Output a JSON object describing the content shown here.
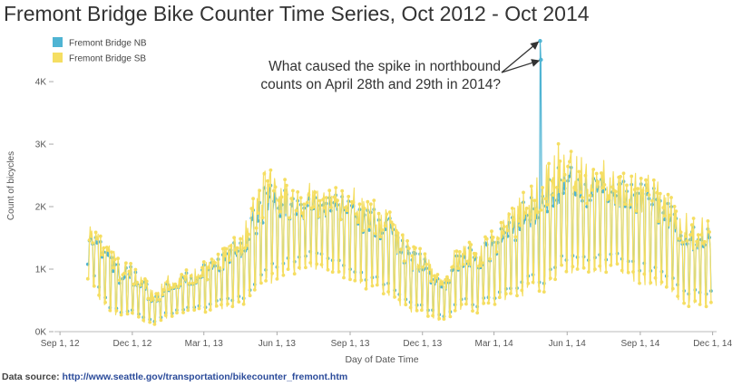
{
  "chart_data": {
    "type": "line",
    "title": "Fremont Bridge Bike Counter Time Series, Oct 2012 - Oct 2014",
    "xlabel": "Day of Date Time",
    "ylabel": "Count of bicycles",
    "x_range": [
      "2012-08-25",
      "2014-12-06"
    ],
    "ylim": [
      0,
      4900
    ],
    "x_ticks": [
      {
        "date": "2012-09-01",
        "label": "Sep 1, 12"
      },
      {
        "date": "2012-12-01",
        "label": "Dec 1, 12"
      },
      {
        "date": "2013-03-01",
        "label": "Mar 1, 13"
      },
      {
        "date": "2013-06-01",
        "label": "Jun 1, 13"
      },
      {
        "date": "2013-09-01",
        "label": "Sep 1, 13"
      },
      {
        "date": "2013-12-01",
        "label": "Dec 1, 13"
      },
      {
        "date": "2014-03-01",
        "label": "Mar 1, 14"
      },
      {
        "date": "2014-06-01",
        "label": "Jun 1, 14"
      },
      {
        "date": "2014-09-01",
        "label": "Sep 1, 14"
      },
      {
        "date": "2014-12-01",
        "label": "Dec 1, 14"
      }
    ],
    "y_ticks": [
      {
        "value": 0,
        "label": "0K"
      },
      {
        "value": 1000,
        "label": "1K"
      },
      {
        "value": 2000,
        "label": "2K"
      },
      {
        "value": 3000,
        "label": "3K"
      },
      {
        "value": 4000,
        "label": "4K"
      }
    ],
    "grid": false,
    "legend_position": "top-left",
    "series": [
      {
        "name": "Fremont Bridge NB",
        "color": "#4fb4d3",
        "weekly": [
          {
            "date": "2012-10-06",
            "high": 1650,
            "low": 1050
          },
          {
            "date": "2012-10-20",
            "high": 1500,
            "low": 650
          },
          {
            "date": "2012-11-03",
            "high": 1300,
            "low": 350
          },
          {
            "date": "2012-11-17",
            "high": 1000,
            "low": 250
          },
          {
            "date": "2012-12-01",
            "high": 1050,
            "low": 300
          },
          {
            "date": "2012-12-15",
            "high": 850,
            "low": 200
          },
          {
            "date": "2012-12-29",
            "high": 550,
            "low": 150
          },
          {
            "date": "2013-01-12",
            "high": 850,
            "low": 250
          },
          {
            "date": "2013-01-26",
            "high": 900,
            "low": 300
          },
          {
            "date": "2013-02-09",
            "high": 950,
            "low": 350
          },
          {
            "date": "2013-02-23",
            "high": 1050,
            "low": 350
          },
          {
            "date": "2013-03-09",
            "high": 1100,
            "low": 400
          },
          {
            "date": "2013-03-23",
            "high": 1200,
            "low": 450
          },
          {
            "date": "2013-04-06",
            "high": 1500,
            "low": 500
          },
          {
            "date": "2013-04-20",
            "high": 1600,
            "low": 500
          },
          {
            "date": "2013-05-04",
            "high": 2000,
            "low": 700
          },
          {
            "date": "2013-05-18",
            "high": 2400,
            "low": 900
          },
          {
            "date": "2013-06-01",
            "high": 2300,
            "low": 1000
          },
          {
            "date": "2013-06-15",
            "high": 2250,
            "low": 1100
          },
          {
            "date": "2013-06-29",
            "high": 2100,
            "low": 1100
          },
          {
            "date": "2013-07-13",
            "high": 2300,
            "low": 1200
          },
          {
            "date": "2013-07-27",
            "high": 2200,
            "low": 1150
          },
          {
            "date": "2013-08-10",
            "high": 2250,
            "low": 1100
          },
          {
            "date": "2013-08-24",
            "high": 2200,
            "low": 1050
          },
          {
            "date": "2013-09-07",
            "high": 2200,
            "low": 900
          },
          {
            "date": "2013-09-21",
            "high": 2000,
            "low": 800
          },
          {
            "date": "2013-10-05",
            "high": 1950,
            "low": 800
          },
          {
            "date": "2013-10-19",
            "high": 1850,
            "low": 700
          },
          {
            "date": "2013-11-02",
            "high": 1600,
            "low": 500
          },
          {
            "date": "2013-11-16",
            "high": 1300,
            "low": 400
          },
          {
            "date": "2013-11-30",
            "high": 1300,
            "low": 350
          },
          {
            "date": "2013-12-14",
            "high": 1000,
            "low": 300
          },
          {
            "date": "2013-12-28",
            "high": 750,
            "low": 200
          },
          {
            "date": "2014-01-11",
            "high": 1300,
            "low": 400
          },
          {
            "date": "2014-01-25",
            "high": 1400,
            "low": 450
          },
          {
            "date": "2014-02-08",
            "high": 1350,
            "low": 400
          },
          {
            "date": "2014-02-22",
            "high": 1450,
            "low": 500
          },
          {
            "date": "2014-03-08",
            "high": 1650,
            "low": 550
          },
          {
            "date": "2014-03-22",
            "high": 1800,
            "low": 600
          },
          {
            "date": "2014-04-05",
            "high": 2050,
            "low": 700
          },
          {
            "date": "2014-04-19",
            "high": 2200,
            "low": 800
          },
          {
            "date": "2014-05-03",
            "high": 2500,
            "low": 700
          },
          {
            "date": "2014-05-17",
            "high": 2600,
            "low": 1000
          },
          {
            "date": "2014-05-31",
            "high": 2700,
            "low": 1100
          },
          {
            "date": "2014-06-14",
            "high": 2750,
            "low": 1150
          },
          {
            "date": "2014-06-28",
            "high": 2500,
            "low": 1100
          },
          {
            "date": "2014-07-12",
            "high": 2650,
            "low": 1150
          },
          {
            "date": "2014-07-26",
            "high": 2500,
            "low": 1150
          },
          {
            "date": "2014-08-09",
            "high": 2500,
            "low": 1100
          },
          {
            "date": "2014-08-23",
            "high": 2400,
            "low": 1000
          },
          {
            "date": "2014-09-06",
            "high": 2500,
            "low": 950
          },
          {
            "date": "2014-09-20",
            "high": 2300,
            "low": 900
          },
          {
            "date": "2014-10-04",
            "high": 2100,
            "low": 800
          },
          {
            "date": "2014-10-18",
            "high": 1900,
            "low": 700
          },
          {
            "date": "2014-11-01",
            "high": 1700,
            "low": 600
          }
        ],
        "spike": [
          {
            "date": "2014-04-28",
            "value": 4650
          },
          {
            "date": "2014-04-29",
            "value": 4350
          }
        ]
      },
      {
        "name": "Fremont Bridge SB",
        "color": "#f5de62",
        "weekly": [
          {
            "date": "2012-10-06",
            "high": 1750,
            "low": 800
          },
          {
            "date": "2012-10-20",
            "high": 1600,
            "low": 500
          },
          {
            "date": "2012-11-03",
            "high": 1400,
            "low": 300
          },
          {
            "date": "2012-11-17",
            "high": 1100,
            "low": 200
          },
          {
            "date": "2012-12-01",
            "high": 1100,
            "low": 250
          },
          {
            "date": "2012-12-15",
            "high": 900,
            "low": 150
          },
          {
            "date": "2012-12-29",
            "high": 600,
            "low": 100
          },
          {
            "date": "2013-01-12",
            "high": 900,
            "low": 200
          },
          {
            "date": "2013-01-26",
            "high": 950,
            "low": 250
          },
          {
            "date": "2013-02-09",
            "high": 1000,
            "low": 300
          },
          {
            "date": "2013-02-23",
            "high": 1100,
            "low": 300
          },
          {
            "date": "2013-03-09",
            "high": 1150,
            "low": 300
          },
          {
            "date": "2013-03-23",
            "high": 1300,
            "low": 350
          },
          {
            "date": "2013-04-06",
            "high": 1600,
            "low": 400
          },
          {
            "date": "2013-04-20",
            "high": 1700,
            "low": 400
          },
          {
            "date": "2013-05-04",
            "high": 2200,
            "low": 600
          },
          {
            "date": "2013-05-18",
            "high": 2650,
            "low": 700
          },
          {
            "date": "2013-06-01",
            "high": 2550,
            "low": 800
          },
          {
            "date": "2013-06-15",
            "high": 2400,
            "low": 900
          },
          {
            "date": "2013-06-29",
            "high": 2250,
            "low": 900
          },
          {
            "date": "2013-07-13",
            "high": 2400,
            "low": 1000
          },
          {
            "date": "2013-07-27",
            "high": 2350,
            "low": 950
          },
          {
            "date": "2013-08-10",
            "high": 2400,
            "low": 900
          },
          {
            "date": "2013-08-24",
            "high": 2300,
            "low": 850
          },
          {
            "date": "2013-09-07",
            "high": 2300,
            "low": 750
          },
          {
            "date": "2013-09-21",
            "high": 2150,
            "low": 650
          },
          {
            "date": "2013-10-05",
            "high": 2100,
            "low": 650
          },
          {
            "date": "2013-10-19",
            "high": 1950,
            "low": 550
          },
          {
            "date": "2013-11-02",
            "high": 1700,
            "low": 400
          },
          {
            "date": "2013-11-16",
            "high": 1400,
            "low": 300
          },
          {
            "date": "2013-11-30",
            "high": 1400,
            "low": 250
          },
          {
            "date": "2013-12-14",
            "high": 1100,
            "low": 200
          },
          {
            "date": "2013-12-28",
            "high": 800,
            "low": 150
          },
          {
            "date": "2014-01-11",
            "high": 1400,
            "low": 300
          },
          {
            "date": "2014-01-25",
            "high": 1500,
            "low": 350
          },
          {
            "date": "2014-02-08",
            "high": 1450,
            "low": 300
          },
          {
            "date": "2014-02-22",
            "high": 1550,
            "low": 400
          },
          {
            "date": "2014-03-08",
            "high": 1750,
            "low": 450
          },
          {
            "date": "2014-03-22",
            "high": 1950,
            "low": 500
          },
          {
            "date": "2014-04-05",
            "high": 2200,
            "low": 550
          },
          {
            "date": "2014-04-19",
            "high": 2400,
            "low": 650
          },
          {
            "date": "2014-05-03",
            "high": 2700,
            "low": 550
          },
          {
            "date": "2014-05-17",
            "high": 3000,
            "low": 800
          },
          {
            "date": "2014-05-31",
            "high": 3050,
            "low": 900
          },
          {
            "date": "2014-06-14",
            "high": 2950,
            "low": 950
          },
          {
            "date": "2014-06-28",
            "high": 2700,
            "low": 900
          },
          {
            "date": "2014-07-12",
            "high": 2800,
            "low": 950
          },
          {
            "date": "2014-07-26",
            "high": 2650,
            "low": 950
          },
          {
            "date": "2014-08-09",
            "high": 2650,
            "low": 900
          },
          {
            "date": "2014-08-23",
            "high": 2550,
            "low": 800
          },
          {
            "date": "2014-09-06",
            "high": 2600,
            "low": 750
          },
          {
            "date": "2014-09-20",
            "high": 2450,
            "low": 700
          },
          {
            "date": "2014-10-04",
            "high": 2250,
            "low": 600
          },
          {
            "date": "2014-10-18",
            "high": 2050,
            "low": 500
          },
          {
            "date": "2014-11-01",
            "high": 1850,
            "low": 400
          }
        ]
      }
    ],
    "annotation": {
      "lines": [
        "What caused the spike in northbound",
        "counts on April 28th and 29th in 2014?"
      ],
      "arrow_targets": [
        "2014-04-28",
        "2014-04-29"
      ]
    }
  },
  "footer": {
    "source_label": "Data source:",
    "source_url": "http://www.seattle.gov/transportation/bikecounter_fremont.htm"
  }
}
